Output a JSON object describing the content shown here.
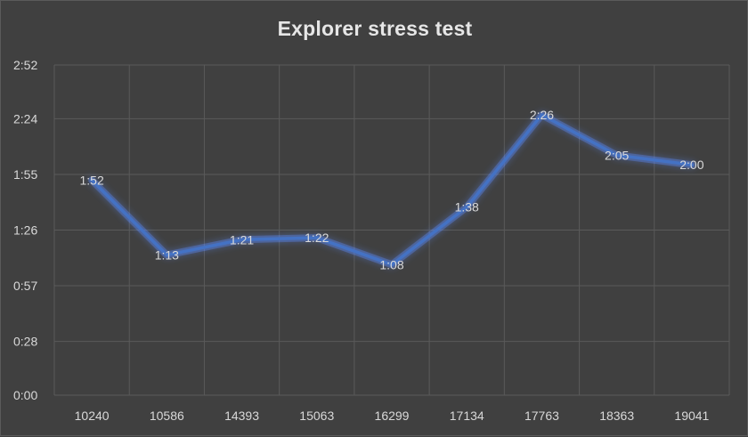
{
  "chart_data": {
    "type": "line",
    "title": "Explorer stress test",
    "xlabel": "",
    "ylabel": "",
    "categories": [
      "10240",
      "10586",
      "14393",
      "15063",
      "16299",
      "17134",
      "17763",
      "18363",
      "19041"
    ],
    "values_seconds": [
      112,
      73,
      81,
      82,
      68,
      98,
      146,
      125,
      120
    ],
    "data_labels": [
      "1:52",
      "1:13",
      "1:21",
      "1:22",
      "1:08",
      "1:38",
      "2:26",
      "2:05",
      "2:00"
    ],
    "ylim_seconds": [
      0,
      172
    ],
    "y_ticks_seconds": [
      0,
      28,
      57,
      86,
      115,
      144,
      172
    ],
    "y_tick_labels": [
      "0:00",
      "0:28",
      "0:57",
      "1:26",
      "1:55",
      "2:24",
      "2:52"
    ],
    "grid": true,
    "legend": "none",
    "line_color": "#4472C4",
    "glow_color": "#5b8cff"
  }
}
